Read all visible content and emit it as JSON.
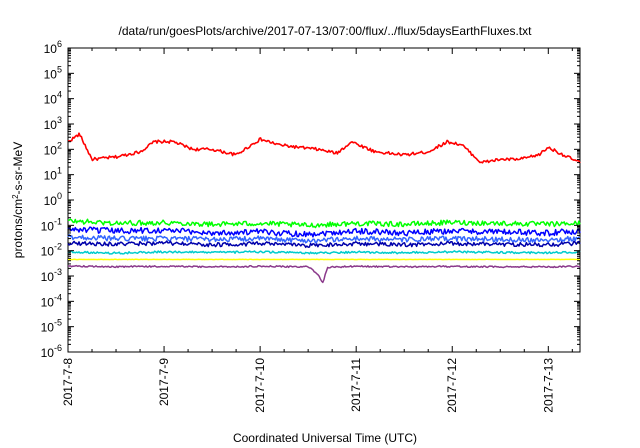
{
  "chart_data": {
    "type": "line",
    "title": "/data/run/goesPlots/archive/2017-07-13/07:00/flux/../flux/5daysEarthFluxes.txt",
    "xlabel": "Coordinated Universal Time (UTC)",
    "ylabel_parts": {
      "pre": "protons/cm",
      "sup": "2",
      "post": "-s-sr-MeV"
    },
    "y_scale": "log",
    "ylim_exponents": [
      -6,
      6
    ],
    "y_tick_labels": [
      {
        "base": "10",
        "exp": "6"
      },
      {
        "base": "10",
        "exp": "5"
      },
      {
        "base": "10",
        "exp": "4"
      },
      {
        "base": "10",
        "exp": "3"
      },
      {
        "base": "10",
        "exp": "2"
      },
      {
        "base": "10",
        "exp": "1"
      },
      {
        "base": "10",
        "exp": "0"
      },
      {
        "base": "10",
        "exp": "-1"
      },
      {
        "base": "10",
        "exp": "-2"
      },
      {
        "base": "10",
        "exp": "-3"
      },
      {
        "base": "10",
        "exp": "-4"
      },
      {
        "base": "10",
        "exp": "-5"
      },
      {
        "base": "10",
        "exp": "-6"
      }
    ],
    "x_tick_labels": [
      "2017-7-8",
      "2017-7-9",
      "2017-7-10",
      "2017-7-11",
      "2017-7-12",
      "2017-7-13"
    ],
    "xlim_days": [
      0,
      5.33
    ],
    "grid": false,
    "series": [
      {
        "color": "#ff0000",
        "x": [
          0.0,
          0.12,
          0.25,
          0.5,
          0.75,
          0.9,
          1.1,
          1.3,
          1.5,
          1.75,
          2.0,
          2.2,
          2.4,
          2.6,
          2.8,
          2.95,
          3.2,
          3.5,
          3.75,
          3.95,
          4.1,
          4.3,
          4.5,
          4.7,
          4.9,
          5.0,
          5.2,
          5.33
        ],
        "values": [
          200,
          400,
          40,
          50,
          80,
          200,
          200,
          100,
          100,
          60,
          250,
          150,
          120,
          100,
          70,
          200,
          80,
          60,
          80,
          200,
          150,
          30,
          40,
          40,
          60,
          120,
          50,
          30
        ]
      },
      {
        "color": "#00ff00",
        "x": [
          0.0,
          0.5,
          1.0,
          1.5,
          2.0,
          2.5,
          3.0,
          3.5,
          4.0,
          4.5,
          5.0,
          5.33
        ],
        "values": [
          0.15,
          0.12,
          0.13,
          0.11,
          0.12,
          0.1,
          0.12,
          0.11,
          0.13,
          0.12,
          0.11,
          0.12
        ]
      },
      {
        "color": "#0000ff",
        "x": [
          0.0,
          0.5,
          1.0,
          1.5,
          2.0,
          2.5,
          3.0,
          3.5,
          4.0,
          4.5,
          5.0,
          5.33
        ],
        "values": [
          0.07,
          0.06,
          0.065,
          0.05,
          0.055,
          0.045,
          0.06,
          0.05,
          0.06,
          0.055,
          0.05,
          0.06
        ]
      },
      {
        "color": "#3366ff",
        "x": [
          0.0,
          0.5,
          1.0,
          1.5,
          2.0,
          2.5,
          3.0,
          3.5,
          4.0,
          4.5,
          5.0,
          5.33
        ],
        "values": [
          0.035,
          0.03,
          0.03,
          0.028,
          0.03,
          0.025,
          0.03,
          0.027,
          0.03,
          0.028,
          0.027,
          0.03
        ]
      },
      {
        "color": "#0000aa",
        "x": [
          0.0,
          0.5,
          1.0,
          1.5,
          2.0,
          2.5,
          3.0,
          3.5,
          4.0,
          4.5,
          5.0,
          5.33
        ],
        "values": [
          0.02,
          0.018,
          0.02,
          0.017,
          0.019,
          0.016,
          0.019,
          0.017,
          0.019,
          0.018,
          0.017,
          0.02
        ]
      },
      {
        "color": "#00cccc",
        "x": [
          0.0,
          0.5,
          1.0,
          1.5,
          2.0,
          2.5,
          3.0,
          3.5,
          4.0,
          4.5,
          5.0,
          5.33
        ],
        "values": [
          0.009,
          0.008,
          0.009,
          0.0085,
          0.009,
          0.008,
          0.0088,
          0.0082,
          0.009,
          0.0085,
          0.0083,
          0.009
        ]
      },
      {
        "color": "#ffff00",
        "x": [
          0.0,
          0.5,
          1.0,
          1.5,
          2.0,
          2.5,
          3.0,
          3.5,
          4.0,
          4.5,
          5.0,
          5.33
        ],
        "values": [
          0.0045,
          0.0045,
          0.0045,
          0.0045,
          0.0045,
          0.0045,
          0.0045,
          0.0045,
          0.0045,
          0.0045,
          0.0045,
          0.0045
        ]
      },
      {
        "color": "#8b3a8b",
        "x": [
          0.0,
          0.5,
          1.0,
          1.5,
          2.0,
          2.5,
          2.6,
          2.65,
          2.7,
          3.0,
          3.5,
          4.0,
          4.5,
          5.0,
          5.33
        ],
        "values": [
          0.0025,
          0.0023,
          0.0024,
          0.0023,
          0.0024,
          0.0023,
          0.0012,
          0.0005,
          0.0022,
          0.0024,
          0.0023,
          0.0024,
          0.0023,
          0.0023,
          0.0024
        ]
      }
    ]
  }
}
